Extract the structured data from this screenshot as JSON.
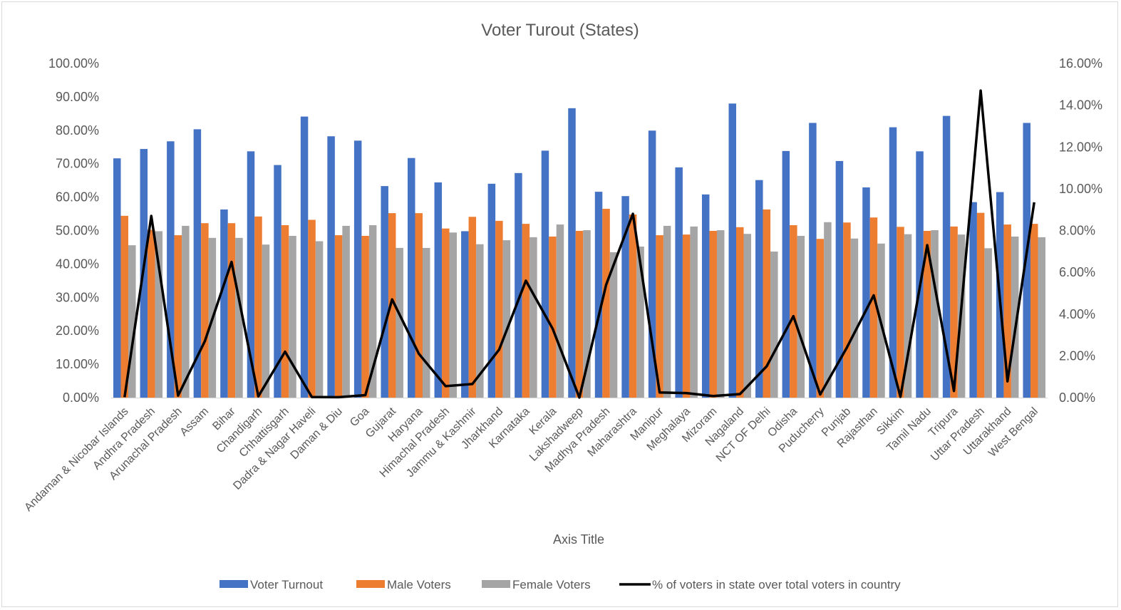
{
  "chart_data": {
    "type": "bar",
    "title": "Voter Turout (States)",
    "xlabel": "Axis Title",
    "categories": [
      "Andaman & Nicobar Islands",
      "Andhra Pradesh",
      "Arunachal Pradesh",
      "Assam",
      "Bihar",
      "Chandigarh",
      "Chhattisgarh",
      "Dadra & Nagar Haveli",
      "Daman & Diu",
      "Goa",
      "Gujarat",
      "Haryana",
      "Himachal Pradesh",
      "Jammu & Kashmir",
      "Jharkhand",
      "Karnataka",
      "Kerala",
      "Lakshadweep",
      "Madhya Pradesh",
      "Maharashtra",
      "Manipur",
      "Meghalaya",
      "Mizoram",
      "Nagaland",
      "NCT OF Delhi",
      "Odisha",
      "Puducherry",
      "Punjab",
      "Rajasthan",
      "Sikkim",
      "Tamil Nadu",
      "Tripura",
      "Uttar Pradesh",
      "Uttarakhand",
      "West Bengal"
    ],
    "primary_axis": {
      "ylim": [
        0,
        100
      ],
      "ticks": [
        "0.00%",
        "10.00%",
        "20.00%",
        "30.00%",
        "40.00%",
        "50.00%",
        "60.00%",
        "70.00%",
        "80.00%",
        "90.00%",
        "100.00%"
      ]
    },
    "secondary_axis": {
      "ylim": [
        0,
        16
      ],
      "ticks": [
        "0.00%",
        "2.00%",
        "4.00%",
        "6.00%",
        "8.00%",
        "10.00%",
        "12.00%",
        "14.00%",
        "16.00%"
      ]
    },
    "series": [
      {
        "name": "Voter Turnout",
        "type": "bar",
        "axis": "primary",
        "color": "#4472C4",
        "values": [
          71.6,
          74.4,
          76.7,
          80.3,
          56.3,
          73.7,
          69.6,
          84.1,
          78.2,
          76.9,
          63.3,
          71.7,
          64.4,
          49.8,
          64.0,
          67.2,
          73.9,
          86.6,
          61.6,
          60.3,
          79.9,
          68.9,
          60.8,
          88.0,
          65.1,
          73.8,
          82.2,
          70.8,
          62.9,
          80.9,
          73.7,
          84.3,
          58.5,
          61.5,
          82.2
        ]
      },
      {
        "name": "Male Voters",
        "type": "bar",
        "axis": "primary",
        "color": "#ED7D31",
        "values": [
          54.4,
          50.2,
          48.6,
          52.2,
          52.2,
          54.2,
          51.6,
          53.2,
          48.6,
          48.4,
          55.2,
          55.2,
          50.6,
          54.1,
          52.9,
          52.0,
          48.2,
          49.9,
          56.5,
          54.8,
          48.6,
          48.8,
          49.9,
          51.0,
          56.3,
          51.6,
          47.5,
          52.4,
          53.9,
          51.1,
          49.9,
          51.2,
          55.3,
          51.8,
          52.0
        ]
      },
      {
        "name": "Female Voters",
        "type": "bar",
        "axis": "primary",
        "color": "#A5A5A5",
        "values": [
          45.6,
          49.8,
          51.4,
          47.8,
          47.8,
          45.8,
          48.4,
          46.8,
          51.4,
          51.6,
          44.8,
          44.8,
          49.4,
          45.9,
          47.1,
          48.0,
          51.8,
          50.1,
          43.5,
          45.2,
          51.4,
          51.2,
          50.1,
          49.0,
          43.7,
          48.4,
          52.5,
          47.6,
          46.1,
          48.9,
          50.1,
          48.8,
          44.7,
          48.2,
          48.0
        ]
      },
      {
        "name": "% of voters in state over total voters in country",
        "type": "line",
        "axis": "secondary",
        "color": "#000000",
        "values": [
          0.02,
          8.7,
          0.1,
          2.7,
          6.5,
          0.06,
          2.2,
          0.03,
          0.02,
          0.12,
          4.7,
          2.1,
          0.55,
          0.65,
          2.3,
          5.6,
          3.3,
          0.005,
          5.4,
          8.8,
          0.25,
          0.22,
          0.08,
          0.17,
          1.5,
          3.9,
          0.15,
          2.4,
          4.9,
          0.04,
          7.3,
          0.32,
          14.7,
          0.78,
          9.35
        ]
      }
    ],
    "grid": false,
    "legend": "bottom"
  }
}
